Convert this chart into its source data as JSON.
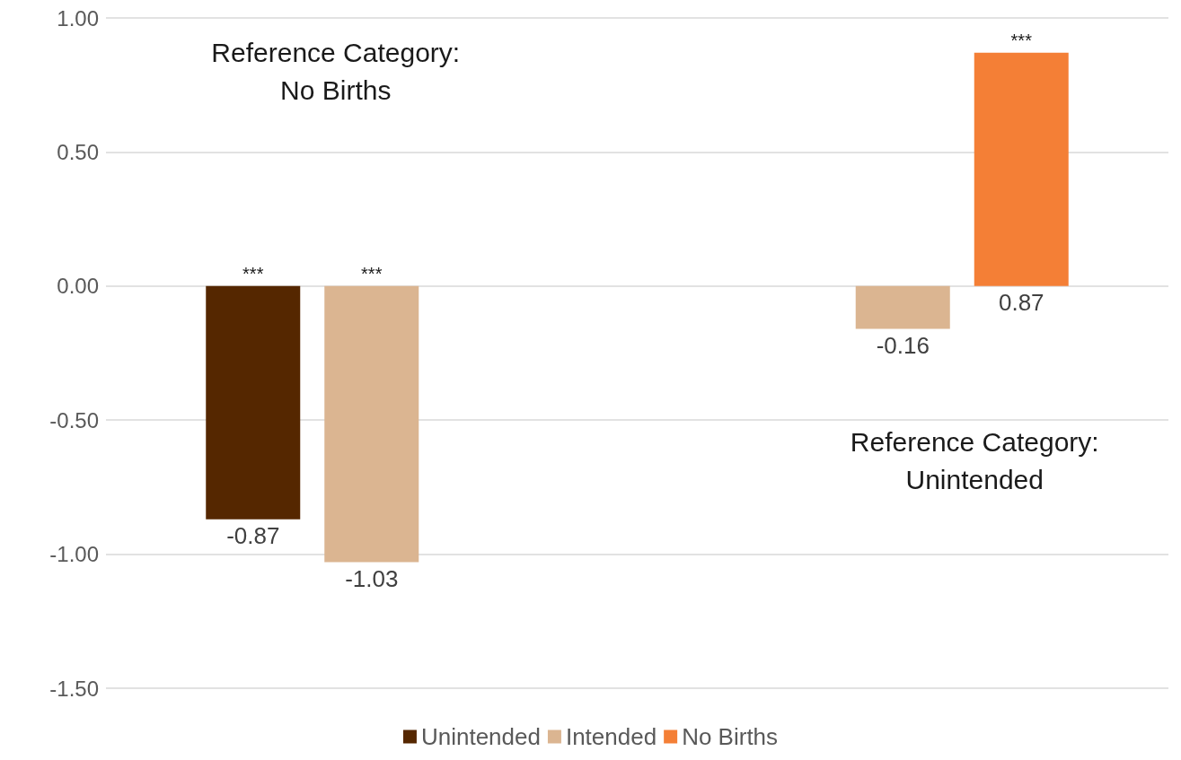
{
  "chart_data": {
    "type": "bar",
    "categories": [
      null,
      null
    ],
    "series": [
      {
        "name": "Unintended",
        "color": "#552700",
        "values": [
          -0.87,
          null
        ]
      },
      {
        "name": "Intended",
        "color": "#dbb591",
        "values": [
          -1.03,
          -0.16
        ]
      },
      {
        "name": "No Births",
        "color": "#f47f36",
        "values": [
          null,
          0.87
        ]
      }
    ],
    "ylim": [
      -1.5,
      1
    ],
    "yticks": [
      {
        "value": -1.5,
        "label": "-1.50"
      },
      {
        "value": -1,
        "label": "-1.00"
      },
      {
        "value": -0.5,
        "label": "-0.50"
      },
      {
        "value": 0,
        "label": "0.00"
      },
      {
        "value": 0.5,
        "label": "0.50"
      },
      {
        "value": 1,
        "label": "1.00"
      }
    ],
    "grid": "y",
    "legend": "bottom",
    "data_labels": true,
    "annotations": [
      "Reference Category:\nNo Births",
      "Reference Category:\nUnintended",
      {
        "text": "***",
        "y": 0
      },
      {
        "text": "***",
        "y": 0
      },
      {
        "text": "***",
        "y": 0.87
      }
    ]
  }
}
